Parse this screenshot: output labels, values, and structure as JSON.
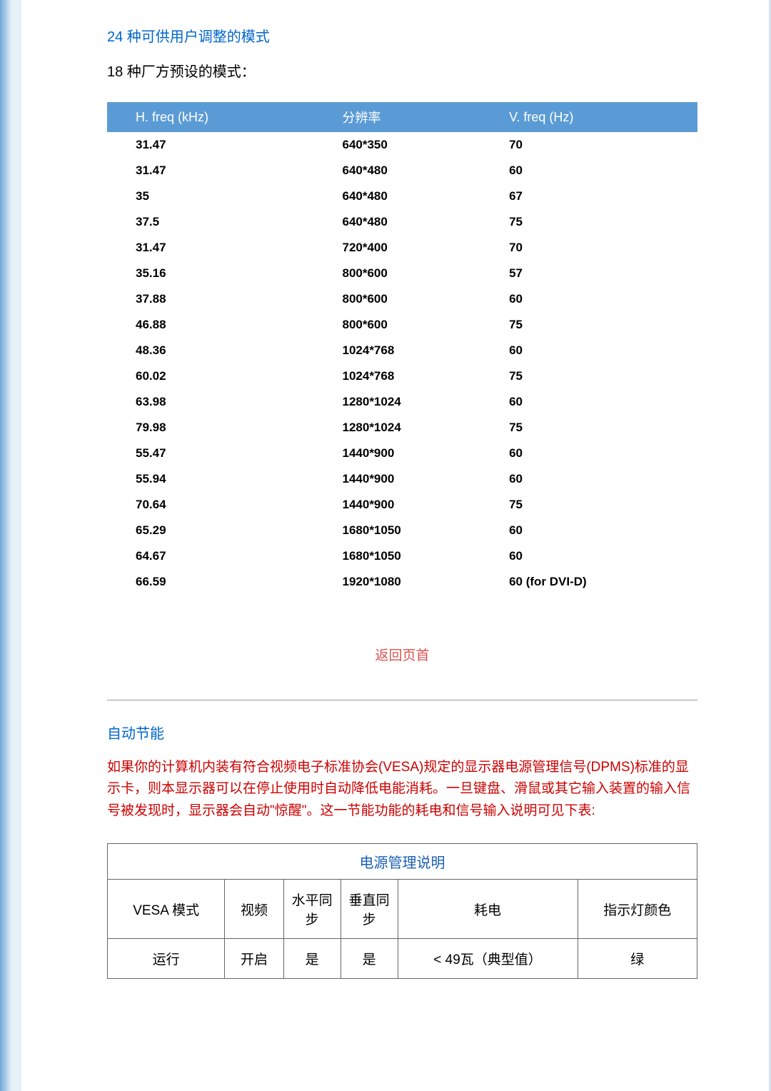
{
  "section1": {
    "title": "24 种可供用户调整的模式",
    "subtitle": "18 种厂方预设的模式："
  },
  "presetTable": {
    "header_bg": "#5b9bd5",
    "header_fg": "#ffffff",
    "headers": {
      "c1": "H. freq (kHz)",
      "c2": "分辨率",
      "c3": "V. freq (Hz)"
    },
    "rows": [
      {
        "h": "31.47",
        "r": "640*350",
        "v": "70"
      },
      {
        "h": "31.47",
        "r": "640*480",
        "v": "60"
      },
      {
        "h": "35",
        "r": "640*480",
        "v": "67"
      },
      {
        "h": "37.5",
        "r": "640*480",
        "v": "75"
      },
      {
        "h": "31.47",
        "r": "720*400",
        "v": "70"
      },
      {
        "h": "35.16",
        "r": "800*600",
        "v": "57"
      },
      {
        "h": "37.88",
        "r": "800*600",
        "v": "60"
      },
      {
        "h": "46.88",
        "r": "800*600",
        "v": "75"
      },
      {
        "h": "48.36",
        "r": "1024*768",
        "v": "60"
      },
      {
        "h": "60.02",
        "r": "1024*768",
        "v": "75"
      },
      {
        "h": "63.98",
        "r": "1280*1024",
        "v": "60"
      },
      {
        "h": "79.98",
        "r": "1280*1024",
        "v": "75"
      },
      {
        "h": "55.47",
        "r": "1440*900",
        "v": "60"
      },
      {
        "h": "55.94",
        "r": "1440*900",
        "v": "60"
      },
      {
        "h": "70.64",
        "r": "1440*900",
        "v": "75"
      },
      {
        "h": "65.29",
        "r": "1680*1050",
        "v": "60"
      },
      {
        "h": "64.67",
        "r": "1680*1050",
        "v": "60"
      },
      {
        "h": "66.59",
        "r": "1920*1080",
        "v": "60 (for DVI-D)"
      }
    ]
  },
  "backLink": {
    "label": "返回页首",
    "color": "#d9534f"
  },
  "section2": {
    "title": "自动节能"
  },
  "paragraph": {
    "text": "如果你的计算机内装有符合视频电子标准协会(VESA)规定的显示器电源管理信号(DPMS)标准的显示卡，则本显示器可以在停止使用时自动降低电能消耗。一旦键盘、滑鼠或其它输入装置的输入信号被发现时，显示器会自动\"惊醒\"。这一节能功能的耗电和信号输入说明可见下表:",
    "color": "#cc0000"
  },
  "powerTable": {
    "title": "电源管理说明",
    "title_color": "#1a5fb4",
    "headers": {
      "c1": "VESA 模式",
      "c2": "视频",
      "c3": "水平同步",
      "c4": "垂直同步",
      "c5": "耗电",
      "c6": "指示灯颜色"
    },
    "row1": {
      "c1": "运行",
      "c2": "开启",
      "c3": "是",
      "c4": "是",
      "c5": "< 49瓦（典型值）",
      "c6": "绿"
    }
  }
}
